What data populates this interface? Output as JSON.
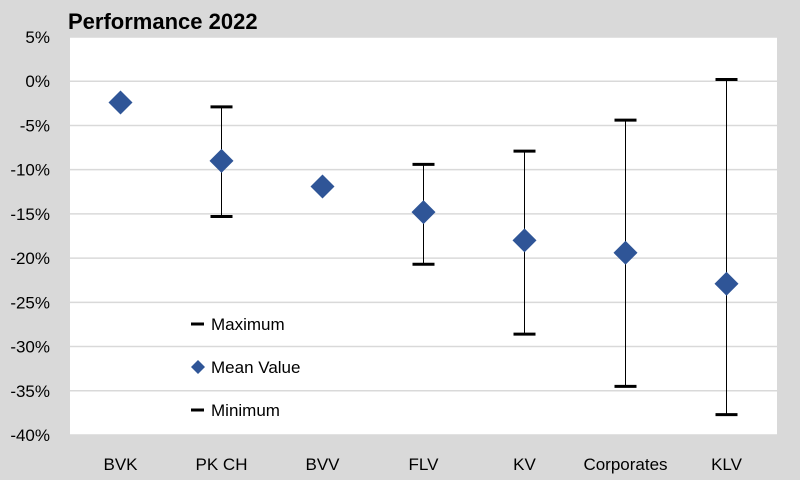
{
  "chart_data": {
    "type": "scatter",
    "title": "Performance 2022",
    "xlabel": "",
    "ylabel": "",
    "ylim": [
      -40,
      5
    ],
    "ytick_step": 5,
    "ytick_suffix": "%",
    "grid": true,
    "legend_position": "bottom-left",
    "colors": {
      "marker": "#2f5597",
      "errorbar": "#000000",
      "grid": "#d9d9d9",
      "plot_bg": "#ffffff",
      "page_bg": "#d9d9d9"
    },
    "categories": [
      "BVK",
      "PK CH",
      "BVV",
      "FLV",
      "KV",
      "Corporates",
      "KLV"
    ],
    "series": [
      {
        "name": "Maximum",
        "values": [
          null,
          -2.9,
          null,
          -9.4,
          -7.9,
          -4.4,
          0.2
        ]
      },
      {
        "name": "Mean Value",
        "values": [
          -2.4,
          -9.0,
          -11.9,
          -14.8,
          -18.0,
          -19.4,
          -22.9
        ]
      },
      {
        "name": "Minimum",
        "values": [
          null,
          -15.3,
          null,
          -20.7,
          -28.6,
          -34.5,
          -37.7
        ]
      }
    ]
  }
}
